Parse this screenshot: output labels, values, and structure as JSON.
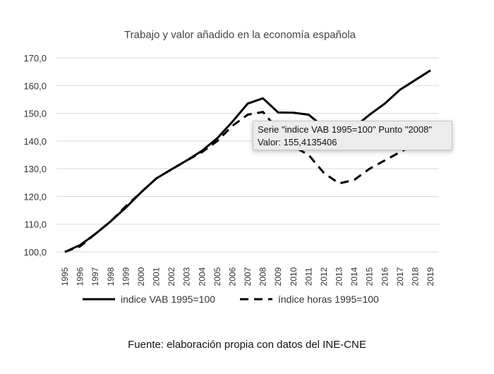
{
  "chart_data": {
    "type": "line",
    "title": "Trabajo y valor añadido en la economía española",
    "x": [
      "1995",
      "1996",
      "1997",
      "1998",
      "1999",
      "2000",
      "2001",
      "2002",
      "2003",
      "2004",
      "2005",
      "2006",
      "2007",
      "2008",
      "2009",
      "2010",
      "2011",
      "2012",
      "2013",
      "2014",
      "2015",
      "2016",
      "2017",
      "2018",
      "2019"
    ],
    "series": [
      {
        "name": "indice VAB 1995=100",
        "style": "solid",
        "values": [
          100,
          102.5,
          106.5,
          111,
          116,
          121.5,
          126.5,
          129.8,
          133,
          136.5,
          141,
          147,
          153.5,
          155.41,
          150.3,
          150.2,
          149.5,
          145,
          142,
          145,
          149.5,
          153.5,
          158.5,
          162,
          165.5
        ]
      },
      {
        "name": "índice horas 1995=100",
        "style": "dashed",
        "values": [
          100,
          102,
          106.5,
          111,
          116.5,
          121.5,
          126.5,
          129.8,
          133,
          136,
          140,
          145.5,
          149.5,
          150.5,
          144,
          138,
          135,
          128.5,
          124.7,
          126,
          130,
          133,
          136,
          139,
          141
        ]
      }
    ],
    "yticks": [
      "100,0",
      "110,0",
      "120,0",
      "130,0",
      "140,0",
      "150,0",
      "160,0",
      "170,0"
    ],
    "ylim": [
      100,
      170
    ],
    "grid": true,
    "legend": "bottom",
    "color": "#000000"
  },
  "tooltip": {
    "line1": "Serie \"indice VAB 1995=100\" Punto \"2008\"",
    "line2": "Valor: 155,4135406"
  },
  "caption": "Fuente: elaboración propia con datos del INE-CNE"
}
